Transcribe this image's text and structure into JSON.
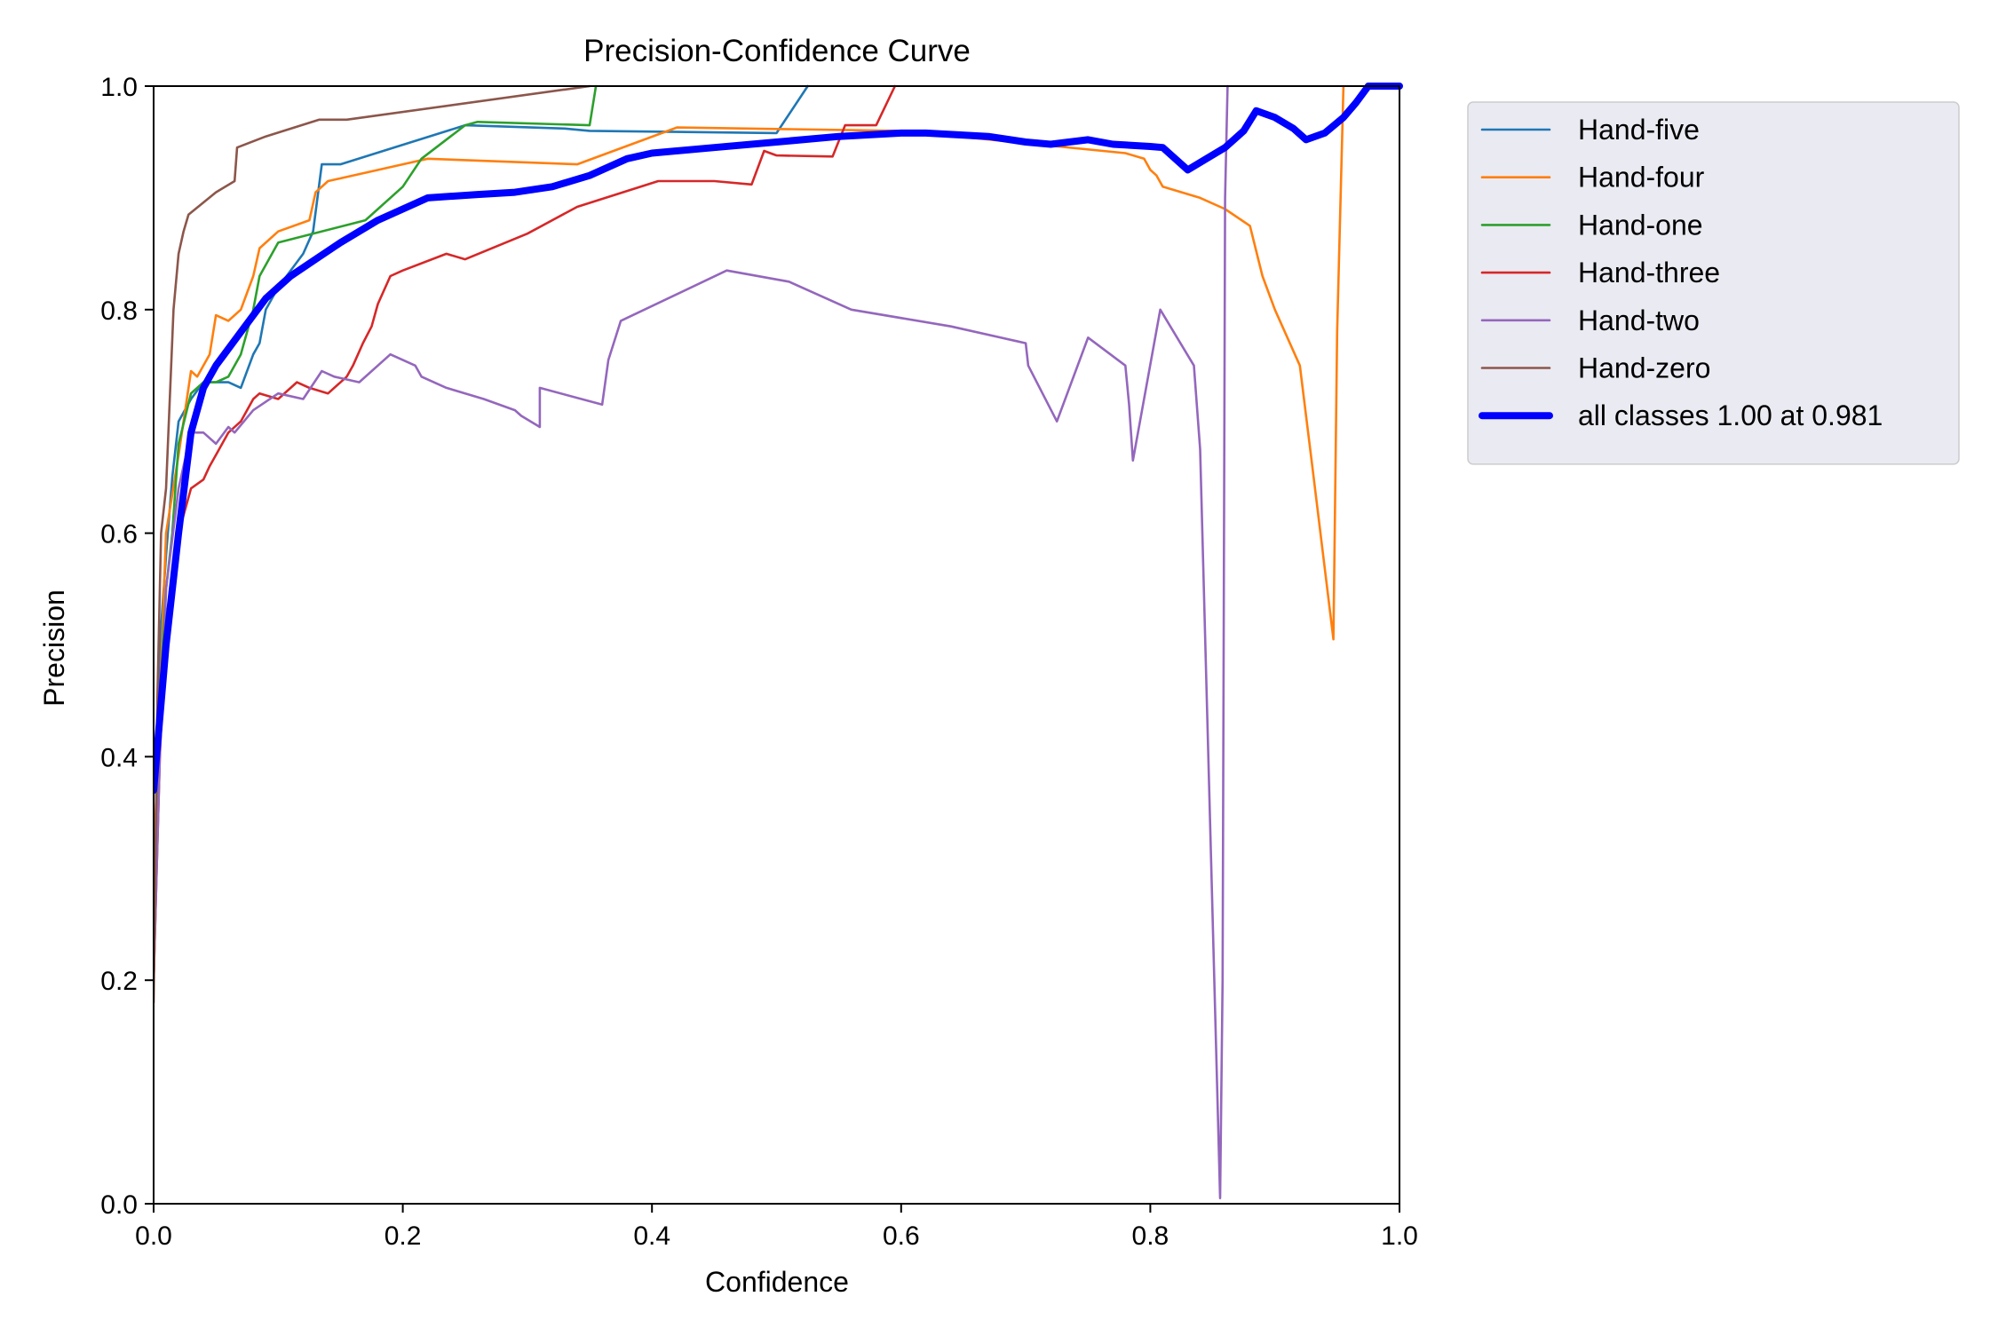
{
  "chart_data": {
    "type": "line",
    "title": "Precision-Confidence Curve",
    "xlabel": "Confidence",
    "ylabel": "Precision",
    "xlim": [
      0,
      1
    ],
    "ylim": [
      0,
      1
    ],
    "xticks": [
      "0.0",
      "0.2",
      "0.4",
      "0.6",
      "0.8",
      "1.0"
    ],
    "yticks": [
      "0.0",
      "0.2",
      "0.4",
      "0.6",
      "0.8",
      "1.0"
    ],
    "grid": false,
    "legend_position": "outside-upper-right",
    "series": [
      {
        "name": "Hand-five",
        "color": "#1f77b4",
        "x": [
          0.0,
          0.005,
          0.01,
          0.015,
          0.02,
          0.03,
          0.04,
          0.05,
          0.06,
          0.07,
          0.08,
          0.085,
          0.09,
          0.1,
          0.12,
          0.128,
          0.135,
          0.15,
          0.25,
          0.33,
          0.35,
          0.5,
          0.525
        ],
        "y": [
          0.22,
          0.5,
          0.58,
          0.65,
          0.7,
          0.72,
          0.735,
          0.735,
          0.735,
          0.73,
          0.76,
          0.77,
          0.8,
          0.82,
          0.85,
          0.87,
          0.93,
          0.93,
          0.965,
          0.962,
          0.96,
          0.958,
          1.0
        ]
      },
      {
        "name": "Hand-four",
        "color": "#ff7f0e",
        "x": [
          0.0,
          0.01,
          0.02,
          0.03,
          0.035,
          0.045,
          0.05,
          0.06,
          0.07,
          0.08,
          0.085,
          0.1,
          0.125,
          0.13,
          0.14,
          0.2,
          0.22,
          0.34,
          0.42,
          0.6,
          0.78,
          0.795,
          0.8,
          0.805,
          0.81,
          0.84,
          0.86,
          0.88,
          0.89,
          0.9,
          0.92,
          0.93,
          0.947,
          0.95,
          0.955
        ],
        "y": [
          0.3,
          0.6,
          0.67,
          0.745,
          0.74,
          0.76,
          0.795,
          0.79,
          0.8,
          0.83,
          0.855,
          0.87,
          0.88,
          0.905,
          0.915,
          0.93,
          0.935,
          0.93,
          0.963,
          0.96,
          0.94,
          0.935,
          0.925,
          0.92,
          0.91,
          0.9,
          0.89,
          0.875,
          0.83,
          0.8,
          0.75,
          0.66,
          0.505,
          0.78,
          1.0
        ]
      },
      {
        "name": "Hand-one",
        "color": "#2ca02c",
        "x": [
          0.0,
          0.005,
          0.01,
          0.015,
          0.02,
          0.03,
          0.04,
          0.05,
          0.06,
          0.07,
          0.08,
          0.085,
          0.1,
          0.17,
          0.2,
          0.215,
          0.25,
          0.26,
          0.35,
          0.355
        ],
        "y": [
          0.2,
          0.45,
          0.55,
          0.6,
          0.68,
          0.725,
          0.735,
          0.735,
          0.74,
          0.76,
          0.8,
          0.83,
          0.86,
          0.88,
          0.91,
          0.935,
          0.965,
          0.968,
          0.965,
          1.0
        ]
      },
      {
        "name": "Hand-three",
        "color": "#d62728",
        "x": [
          0.0,
          0.005,
          0.01,
          0.02,
          0.025,
          0.03,
          0.04,
          0.045,
          0.05,
          0.06,
          0.07,
          0.08,
          0.085,
          0.1,
          0.115,
          0.125,
          0.14,
          0.155,
          0.16,
          0.168,
          0.175,
          0.18,
          0.19,
          0.2,
          0.235,
          0.25,
          0.3,
          0.34,
          0.405,
          0.45,
          0.48,
          0.49,
          0.5,
          0.545,
          0.555,
          0.58,
          0.595
        ],
        "y": [
          0.2,
          0.4,
          0.52,
          0.6,
          0.62,
          0.64,
          0.648,
          0.66,
          0.67,
          0.69,
          0.7,
          0.72,
          0.725,
          0.72,
          0.735,
          0.73,
          0.725,
          0.74,
          0.75,
          0.77,
          0.785,
          0.805,
          0.83,
          0.835,
          0.85,
          0.845,
          0.868,
          0.892,
          0.915,
          0.915,
          0.912,
          0.942,
          0.938,
          0.937,
          0.965,
          0.965,
          1.0
        ]
      },
      {
        "name": "Hand-two",
        "color": "#9467bd",
        "x": [
          0.0,
          0.005,
          0.01,
          0.02,
          0.03,
          0.04,
          0.05,
          0.06,
          0.065,
          0.08,
          0.1,
          0.12,
          0.135,
          0.145,
          0.165,
          0.19,
          0.21,
          0.215,
          0.235,
          0.265,
          0.29,
          0.295,
          0.31,
          0.31,
          0.36,
          0.365,
          0.375,
          0.46,
          0.51,
          0.56,
          0.64,
          0.7,
          0.702,
          0.725,
          0.75,
          0.78,
          0.783,
          0.786,
          0.808,
          0.835,
          0.84,
          0.856,
          0.858,
          0.86,
          0.862
        ],
        "y": [
          0.2,
          0.4,
          0.55,
          0.64,
          0.69,
          0.69,
          0.68,
          0.695,
          0.69,
          0.71,
          0.725,
          0.72,
          0.745,
          0.74,
          0.735,
          0.76,
          0.75,
          0.74,
          0.73,
          0.72,
          0.71,
          0.705,
          0.695,
          0.73,
          0.715,
          0.755,
          0.79,
          0.835,
          0.825,
          0.8,
          0.785,
          0.77,
          0.75,
          0.7,
          0.775,
          0.75,
          0.715,
          0.665,
          0.8,
          0.75,
          0.675,
          0.005,
          0.2,
          0.9,
          1.0
        ]
      },
      {
        "name": "Hand-zero",
        "color": "#8c564b",
        "x": [
          0.0,
          0.003,
          0.006,
          0.01,
          0.013,
          0.016,
          0.02,
          0.024,
          0.028,
          0.05,
          0.065,
          0.067,
          0.09,
          0.133,
          0.155,
          0.35
        ],
        "y": [
          0.18,
          0.45,
          0.6,
          0.64,
          0.72,
          0.8,
          0.85,
          0.87,
          0.885,
          0.905,
          0.915,
          0.945,
          0.955,
          0.97,
          0.97,
          1.0
        ]
      },
      {
        "name": "all classes 1.00 at 0.981",
        "color": "#0000ff",
        "thick": true,
        "x": [
          0.0,
          0.01,
          0.02,
          0.03,
          0.04,
          0.05,
          0.07,
          0.09,
          0.11,
          0.13,
          0.15,
          0.18,
          0.2,
          0.22,
          0.26,
          0.29,
          0.32,
          0.35,
          0.38,
          0.4,
          0.45,
          0.5,
          0.55,
          0.6,
          0.62,
          0.67,
          0.7,
          0.72,
          0.75,
          0.77,
          0.8,
          0.81,
          0.83,
          0.845,
          0.86,
          0.875,
          0.885,
          0.9,
          0.915,
          0.925,
          0.94,
          0.955,
          0.965,
          0.975,
          0.98,
          1.0
        ],
        "y": [
          0.37,
          0.5,
          0.6,
          0.69,
          0.73,
          0.75,
          0.78,
          0.81,
          0.83,
          0.845,
          0.86,
          0.88,
          0.89,
          0.9,
          0.903,
          0.905,
          0.91,
          0.92,
          0.935,
          0.94,
          0.945,
          0.95,
          0.955,
          0.958,
          0.958,
          0.955,
          0.95,
          0.948,
          0.952,
          0.948,
          0.946,
          0.945,
          0.925,
          0.935,
          0.945,
          0.96,
          0.978,
          0.972,
          0.962,
          0.952,
          0.958,
          0.972,
          0.985,
          1.0,
          1.0,
          1.0
        ]
      }
    ]
  }
}
